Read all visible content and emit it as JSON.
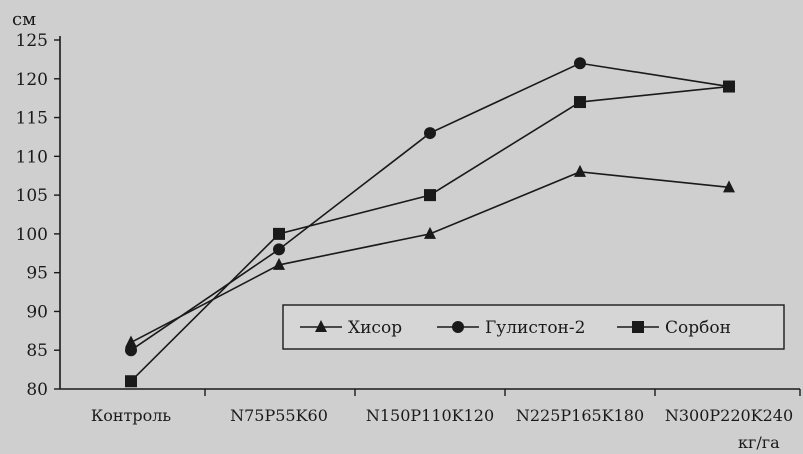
{
  "chart_data": {
    "type": "line",
    "title": "",
    "ylabel": "см",
    "xlabel": "кг/га",
    "categories": [
      "Контроль",
      "N75P55K60",
      "N150P110K120",
      "N225P165K180",
      "N300P220K240"
    ],
    "ylim": [
      80,
      125
    ],
    "yticks": [
      80,
      85,
      90,
      95,
      100,
      105,
      110,
      115,
      120,
      125
    ],
    "grid": false,
    "legend_position": "lower-right",
    "series": [
      {
        "name": "Хисор",
        "marker": "triangle",
        "values": [
          86,
          96,
          100,
          108,
          106
        ]
      },
      {
        "name": "Гулистон-2",
        "marker": "circle",
        "values": [
          85,
          98,
          113,
          122,
          119
        ]
      },
      {
        "name": "Сорбон",
        "marker": "square",
        "values": [
          81,
          100,
          105,
          117,
          119
        ]
      }
    ],
    "colors": {
      "line": "#1a1a1a",
      "background": "#cfcfcf"
    }
  }
}
